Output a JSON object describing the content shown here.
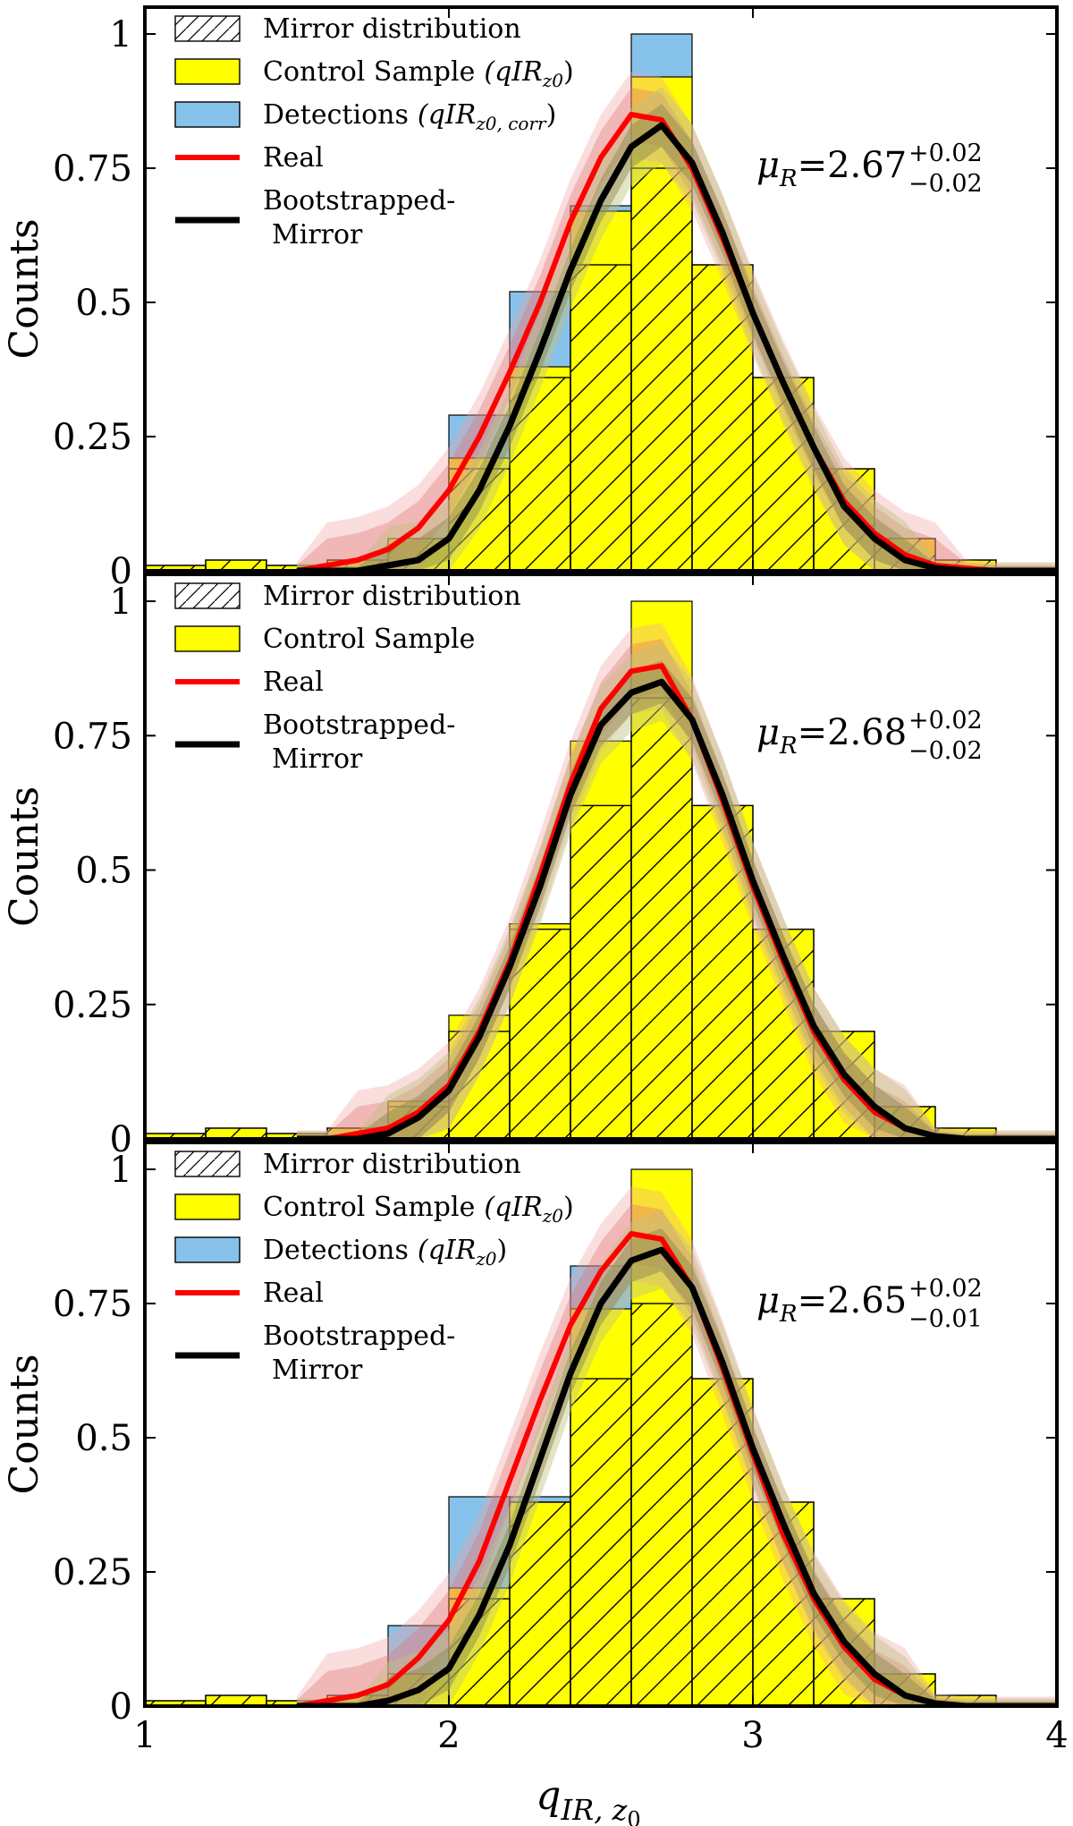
{
  "figure": {
    "xlabel": "q",
    "xlabel_sub": "IR, z",
    "xlabel_subsub": "0",
    "xticks": [
      1,
      2,
      3,
      4
    ],
    "xtick_labels": [
      "1",
      "2",
      "3",
      "4"
    ],
    "colors": {
      "mirror_edge": "#000000",
      "control": "#ffff00",
      "detections": "#87c2ea",
      "real": "#ff0000",
      "bootstrapped": "#000000",
      "real_band": "#f0a0a0",
      "boot_band_outer": "#c0c080",
      "boot_band_inner": "#908c50"
    }
  },
  "chart_data": [
    {
      "type": "bar",
      "panel": "top",
      "ylabel": "Counts",
      "xlim": [
        1,
        4
      ],
      "ylim": [
        0,
        1.05
      ],
      "yticks": [
        0,
        0.25,
        0.5,
        0.75,
        1
      ],
      "ytick_labels": [
        "0",
        "0.25",
        "0.5",
        "0.75",
        "1"
      ],
      "bin_edges": [
        1.0,
        1.2,
        1.4,
        1.6,
        1.8,
        2.0,
        2.2,
        2.4,
        2.6,
        2.8,
        3.0,
        3.2,
        3.4,
        3.6,
        3.8
      ],
      "series": [
        {
          "name": "Mirror distribution",
          "values": [
            0.01,
            0.02,
            0.01,
            0.02,
            0.06,
            0.19,
            0.36,
            0.57,
            0.75,
            0.57,
            0.36,
            0.19,
            0.06,
            0.02
          ]
        },
        {
          "name": "Control Sample",
          "name_math": "(qIR",
          "name_math_sub": "z0",
          "name_math_end": ")",
          "values": [
            0.01,
            0.02,
            0.01,
            0.02,
            0.06,
            0.21,
            0.38,
            0.67,
            0.92,
            0.57,
            0.36,
            0.19,
            0.06,
            0.02
          ]
        },
        {
          "name": "Detections",
          "name_math": "(qIR",
          "name_math_sub": "z0, corr",
          "name_math_end": ")",
          "values": [
            0,
            0,
            0,
            0,
            0,
            0.29,
            0.52,
            0.68,
            1.0,
            0,
            0,
            0,
            0,
            0
          ]
        }
      ],
      "curves": {
        "x": [
          1.5,
          1.6,
          1.7,
          1.8,
          1.9,
          2.0,
          2.1,
          2.2,
          2.3,
          2.4,
          2.5,
          2.6,
          2.7,
          2.8,
          2.9,
          3.0,
          3.1,
          3.2,
          3.3,
          3.4,
          3.5,
          3.6,
          3.7,
          3.8,
          3.9,
          4.0
        ],
        "real": [
          0.0,
          0.01,
          0.02,
          0.04,
          0.08,
          0.15,
          0.25,
          0.37,
          0.5,
          0.65,
          0.77,
          0.85,
          0.84,
          0.75,
          0.62,
          0.48,
          0.35,
          0.23,
          0.13,
          0.07,
          0.03,
          0.01,
          0.005,
          0.0,
          0.0,
          0.0
        ],
        "real_band": 0.05,
        "bootstrapped": [
          0.0,
          0.0,
          0.0,
          0.01,
          0.02,
          0.06,
          0.15,
          0.27,
          0.41,
          0.56,
          0.69,
          0.79,
          0.83,
          0.76,
          0.63,
          0.48,
          0.35,
          0.23,
          0.12,
          0.06,
          0.02,
          0.005,
          0.0,
          0.0,
          0.0,
          0.0
        ],
        "bootstrapped_band": 0.04
      },
      "legend": [
        {
          "key": "mirror",
          "label": "Mirror distribution"
        },
        {
          "key": "control",
          "label": "Control Sample",
          "math": "(qIR",
          "sub": "z0",
          "end": ")"
        },
        {
          "key": "detections",
          "label": "Detections",
          "math": "(qIR",
          "sub": "z0, corr",
          "end": ")"
        },
        {
          "key": "real",
          "label": "Real"
        },
        {
          "key": "boot",
          "label": "Bootstrapped-",
          "label2": "Mirror"
        }
      ],
      "mu_text": {
        "symbol": "μ",
        "sub": "R",
        "value": "=2.67",
        "plus": "+0.02",
        "minus": "−0.02"
      }
    },
    {
      "type": "bar",
      "panel": "middle",
      "ylabel": "Counts",
      "xlim": [
        1,
        4
      ],
      "ylim": [
        0,
        1.05
      ],
      "yticks": [
        0,
        0.25,
        0.5,
        0.75,
        1
      ],
      "ytick_labels": [
        "0",
        "0.25",
        "0.5",
        "0.75",
        "1"
      ],
      "bin_edges": [
        1.0,
        1.2,
        1.4,
        1.6,
        1.8,
        2.0,
        2.2,
        2.4,
        2.6,
        2.8,
        3.0,
        3.2,
        3.4,
        3.6,
        3.8
      ],
      "series": [
        {
          "name": "Mirror distribution",
          "values": [
            0.01,
            0.02,
            0.01,
            0.02,
            0.06,
            0.2,
            0.39,
            0.62,
            0.82,
            0.62,
            0.39,
            0.2,
            0.06,
            0.02
          ]
        },
        {
          "name": "Control Sample",
          "values": [
            0.01,
            0.02,
            0.01,
            0.02,
            0.07,
            0.23,
            0.4,
            0.74,
            1.0,
            0.62,
            0.39,
            0.2,
            0.06,
            0.02
          ]
        }
      ],
      "curves": {
        "x": [
          1.5,
          1.6,
          1.7,
          1.8,
          1.9,
          2.0,
          2.1,
          2.2,
          2.3,
          2.4,
          2.5,
          2.6,
          2.7,
          2.8,
          2.9,
          3.0,
          3.1,
          3.2,
          3.3,
          3.4,
          3.5,
          3.6,
          3.7,
          3.8,
          3.9,
          4.0
        ],
        "real": [
          0.0,
          0.0,
          0.01,
          0.02,
          0.05,
          0.1,
          0.2,
          0.33,
          0.49,
          0.66,
          0.8,
          0.87,
          0.88,
          0.78,
          0.63,
          0.47,
          0.33,
          0.2,
          0.11,
          0.05,
          0.02,
          0.005,
          0.0,
          0.0,
          0.0,
          0.0
        ],
        "real_band": 0.05,
        "bootstrapped": [
          0.0,
          0.0,
          0.0,
          0.01,
          0.04,
          0.09,
          0.19,
          0.32,
          0.47,
          0.64,
          0.77,
          0.83,
          0.85,
          0.78,
          0.64,
          0.48,
          0.34,
          0.21,
          0.12,
          0.06,
          0.02,
          0.005,
          0.0,
          0.0,
          0.0,
          0.0
        ],
        "bootstrapped_band": 0.04
      },
      "legend": [
        {
          "key": "mirror",
          "label": "Mirror distribution"
        },
        {
          "key": "control",
          "label": "Control Sample"
        },
        {
          "key": "real",
          "label": "Real"
        },
        {
          "key": "boot",
          "label": "Bootstrapped-",
          "label2": "Mirror"
        }
      ],
      "mu_text": {
        "symbol": "μ",
        "sub": "R",
        "value": "=2.68",
        "plus": "+0.02",
        "minus": "−0.02"
      }
    },
    {
      "type": "bar",
      "panel": "bottom",
      "ylabel": "Counts",
      "xlim": [
        1,
        4
      ],
      "ylim": [
        0,
        1.05
      ],
      "yticks": [
        0,
        0.25,
        0.5,
        0.75,
        1
      ],
      "ytick_labels": [
        "0",
        "0.25",
        "0.5",
        "0.75",
        "1"
      ],
      "bin_edges": [
        1.0,
        1.2,
        1.4,
        1.6,
        1.8,
        2.0,
        2.2,
        2.4,
        2.6,
        2.8,
        3.0,
        3.2,
        3.4,
        3.6,
        3.8
      ],
      "series": [
        {
          "name": "Mirror distribution",
          "values": [
            0.01,
            0.02,
            0.01,
            0.02,
            0.06,
            0.2,
            0.38,
            0.61,
            0.75,
            0.61,
            0.38,
            0.2,
            0.06,
            0.02
          ]
        },
        {
          "name": "Control Sample",
          "name_math": "(qIR",
          "name_math_sub": "z0",
          "name_math_end": ")",
          "values": [
            0.01,
            0.02,
            0.01,
            0.02,
            0.06,
            0.22,
            0.38,
            0.74,
            1.0,
            0.61,
            0.38,
            0.2,
            0.06,
            0.02
          ]
        },
        {
          "name": "Detections",
          "name_math": "(qIR",
          "name_math_sub": "z0",
          "name_math_end": ")",
          "values": [
            0,
            0,
            0,
            0,
            0.15,
            0.39,
            0.39,
            0.82,
            0,
            0,
            0,
            0,
            0,
            0
          ]
        }
      ],
      "curves": {
        "x": [
          1.5,
          1.6,
          1.7,
          1.8,
          1.9,
          2.0,
          2.1,
          2.2,
          2.3,
          2.4,
          2.5,
          2.6,
          2.7,
          2.8,
          2.9,
          3.0,
          3.1,
          3.2,
          3.3,
          3.4,
          3.5,
          3.6,
          3.7,
          3.8,
          3.9,
          4.0
        ],
        "real": [
          0.0,
          0.01,
          0.02,
          0.04,
          0.09,
          0.16,
          0.27,
          0.42,
          0.57,
          0.71,
          0.81,
          0.88,
          0.87,
          0.78,
          0.63,
          0.47,
          0.32,
          0.2,
          0.11,
          0.05,
          0.02,
          0.005,
          0.0,
          0.0,
          0.0,
          0.0
        ],
        "real_band": 0.055,
        "bootstrapped": [
          0.0,
          0.0,
          0.0,
          0.01,
          0.03,
          0.07,
          0.17,
          0.3,
          0.46,
          0.62,
          0.75,
          0.83,
          0.85,
          0.78,
          0.64,
          0.48,
          0.34,
          0.21,
          0.12,
          0.06,
          0.02,
          0.005,
          0.0,
          0.0,
          0.0,
          0.0
        ],
        "bootstrapped_band": 0.04
      },
      "legend": [
        {
          "key": "mirror",
          "label": "Mirror distribution"
        },
        {
          "key": "control",
          "label": "Control Sample",
          "math": "(qIR",
          "sub": "z0",
          "end": ")"
        },
        {
          "key": "detections",
          "label": "Detections",
          "math": "(qIR",
          "sub": "z0",
          "end": ")"
        },
        {
          "key": "real",
          "label": "Real"
        },
        {
          "key": "boot",
          "label": "Bootstrapped-",
          "label2": "Mirror"
        }
      ],
      "mu_text": {
        "symbol": "μ",
        "sub": "R",
        "value": "=2.65",
        "plus": "+0.02",
        "minus": "−0.01"
      }
    }
  ]
}
